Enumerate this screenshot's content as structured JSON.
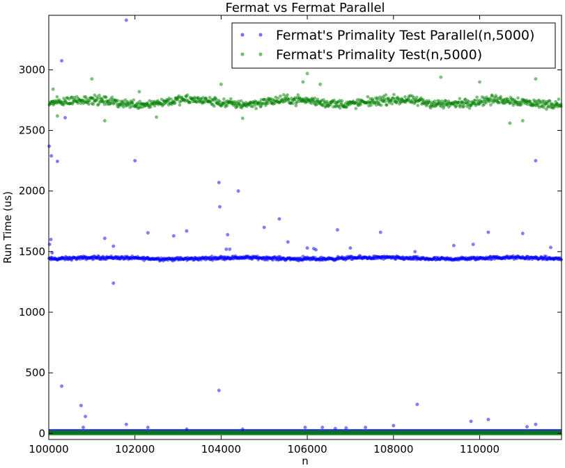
{
  "chart_data": {
    "type": "scatter",
    "title": "Fermat vs Fermat Parallel",
    "xlabel": "n",
    "ylabel": "Run Time (us)",
    "xlim": [
      100000,
      111900
    ],
    "ylim": [
      -50,
      3450
    ],
    "x_ticks": [
      "100000",
      "102000",
      "104000",
      "106000",
      "108000",
      "110000"
    ],
    "y_ticks": [
      "0",
      "500",
      "1000",
      "1500",
      "2000",
      "2500",
      "3000"
    ],
    "grid": false,
    "legend_position": "top-right",
    "series": [
      {
        "name": "Fermat's Primality Test Parallel(n,5000)",
        "color": "#0000ff",
        "main_band": {
          "x_range": [
            100000,
            111900
          ],
          "center": 1445,
          "spread": 20
        },
        "floor_band": {
          "x_range": [
            100000,
            111900
          ],
          "center": 15,
          "spread": 10
        },
        "outliers": [
          [
            100010,
            2370
          ],
          [
            100060,
            2290
          ],
          [
            100200,
            2245
          ],
          [
            100300,
            3075
          ],
          [
            100380,
            2605
          ],
          [
            100020,
            1560
          ],
          [
            100050,
            1600
          ],
          [
            100080,
            1490
          ],
          [
            101800,
            3410
          ],
          [
            102000,
            2250
          ],
          [
            103950,
            2070
          ],
          [
            103970,
            1870
          ],
          [
            104400,
            2000
          ],
          [
            104150,
            1640
          ],
          [
            104200,
            1520
          ],
          [
            105000,
            1700
          ],
          [
            105350,
            1770
          ],
          [
            105550,
            1580
          ],
          [
            106000,
            1530
          ],
          [
            106150,
            1525
          ],
          [
            106200,
            1515
          ],
          [
            106700,
            1680
          ],
          [
            107000,
            1530
          ],
          [
            107700,
            1660
          ],
          [
            108500,
            1500
          ],
          [
            109400,
            1550
          ],
          [
            109850,
            1560
          ],
          [
            110200,
            1660
          ],
          [
            111000,
            1650
          ],
          [
            111300,
            2250
          ],
          [
            111650,
            1535
          ],
          [
            101300,
            1610
          ],
          [
            101500,
            1545
          ],
          [
            101500,
            1240
          ],
          [
            102300,
            1655
          ],
          [
            103200,
            1670
          ],
          [
            104120,
            1520
          ],
          [
            102900,
            1630
          ],
          [
            105900,
            1460
          ],
          [
            100300,
            390
          ],
          [
            100750,
            230
          ],
          [
            100850,
            140
          ],
          [
            103950,
            355
          ],
          [
            108550,
            240
          ],
          [
            101800,
            75
          ],
          [
            102300,
            50
          ],
          [
            100800,
            50
          ],
          [
            105950,
            50
          ],
          [
            106350,
            50
          ],
          [
            106650,
            40
          ],
          [
            106900,
            45
          ],
          [
            107350,
            50
          ],
          [
            108000,
            65
          ],
          [
            109800,
            100
          ],
          [
            110200,
            115
          ],
          [
            111100,
            55
          ],
          [
            111300,
            75
          ],
          [
            103200,
            35
          ],
          [
            104500,
            35
          ]
        ]
      },
      {
        "name": "Fermat's Primality Test(n,5000)",
        "color": "#008000",
        "main_band": {
          "x_range": [
            100000,
            111900
          ],
          "center": 2735,
          "spread": 55
        },
        "floor_band": {
          "x_range": [
            100000,
            111900
          ],
          "center": 5,
          "spread": 8
        },
        "outliers": [
          [
            100100,
            2840
          ],
          [
            101000,
            2925
          ],
          [
            102100,
            2820
          ],
          [
            106000,
            2970
          ],
          [
            105900,
            2900
          ],
          [
            106300,
            2880
          ],
          [
            109100,
            2940
          ],
          [
            110000,
            2900
          ],
          [
            111300,
            2925
          ],
          [
            111000,
            2580
          ],
          [
            104500,
            2600
          ],
          [
            101300,
            2580
          ],
          [
            102500,
            2610
          ],
          [
            110700,
            2560
          ],
          [
            100200,
            2620
          ],
          [
            104000,
            2880
          ]
        ]
      }
    ]
  }
}
